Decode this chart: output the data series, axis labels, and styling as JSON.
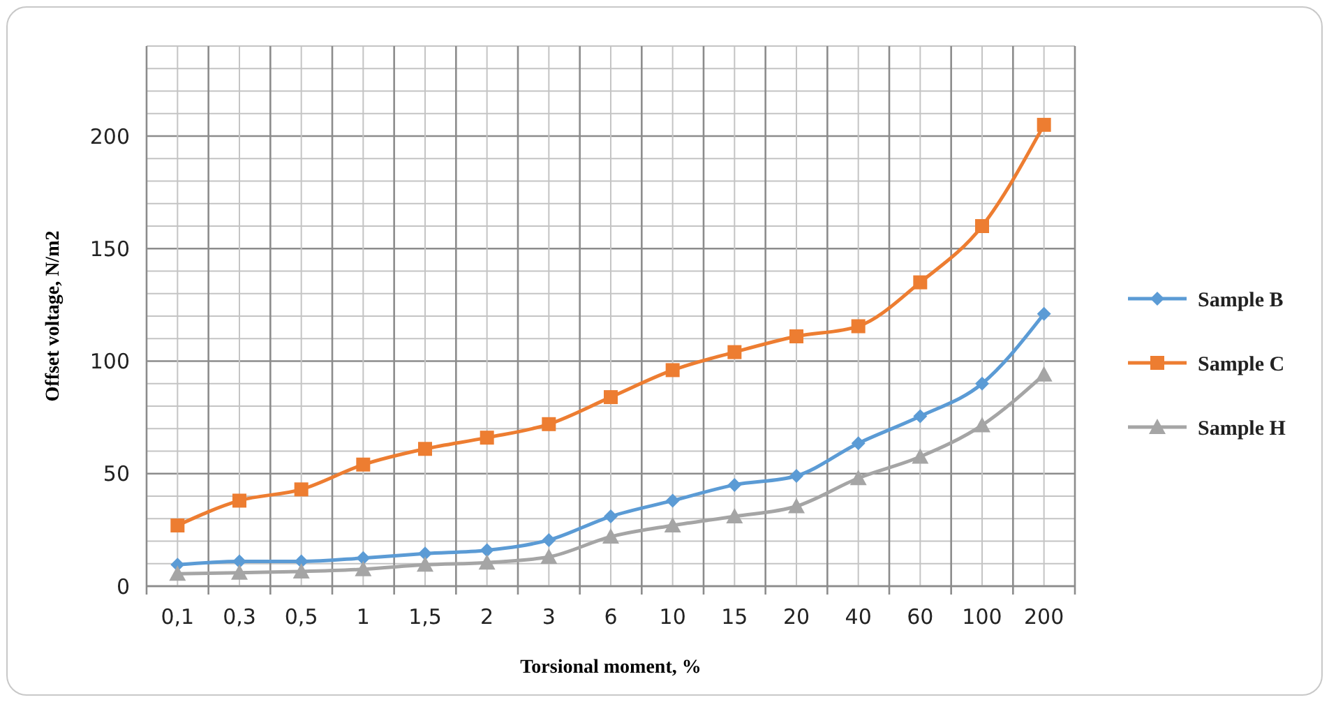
{
  "chart_data": {
    "type": "line",
    "xlabel": "Torsional moment, %",
    "ylabel": "Offset voltage, N/m2",
    "categories": [
      "0,1",
      "0,3",
      "0,5",
      "1",
      "1,5",
      "2",
      "3",
      "6",
      "10",
      "15",
      "20",
      "40",
      "60",
      "100",
      "200"
    ],
    "series": [
      {
        "name": "Sample B",
        "color": "#5b9bd5",
        "marker": "diamond",
        "values": [
          9.5,
          11,
          11,
          12.5,
          14.5,
          16,
          20.5,
          31,
          38,
          45,
          49,
          63.5,
          75.5,
          90,
          121
        ]
      },
      {
        "name": "Sample C",
        "color": "#ed7d31",
        "marker": "square",
        "values": [
          27,
          38,
          43,
          54,
          61,
          66,
          72,
          84,
          96,
          104,
          111,
          115.5,
          135,
          160,
          205
        ]
      },
      {
        "name": "Sample H",
        "color": "#a5a5a5",
        "marker": "triangle",
        "values": [
          5.5,
          6,
          6.5,
          7.5,
          9.5,
          10.5,
          13,
          22,
          27,
          31,
          35.5,
          48,
          57.5,
          71.5,
          94
        ]
      }
    ],
    "ylim": [
      0,
      240
    ],
    "yticks": [
      0,
      50,
      100,
      150,
      200
    ],
    "grid": true,
    "legend": "right",
    "line_style": "solid"
  }
}
